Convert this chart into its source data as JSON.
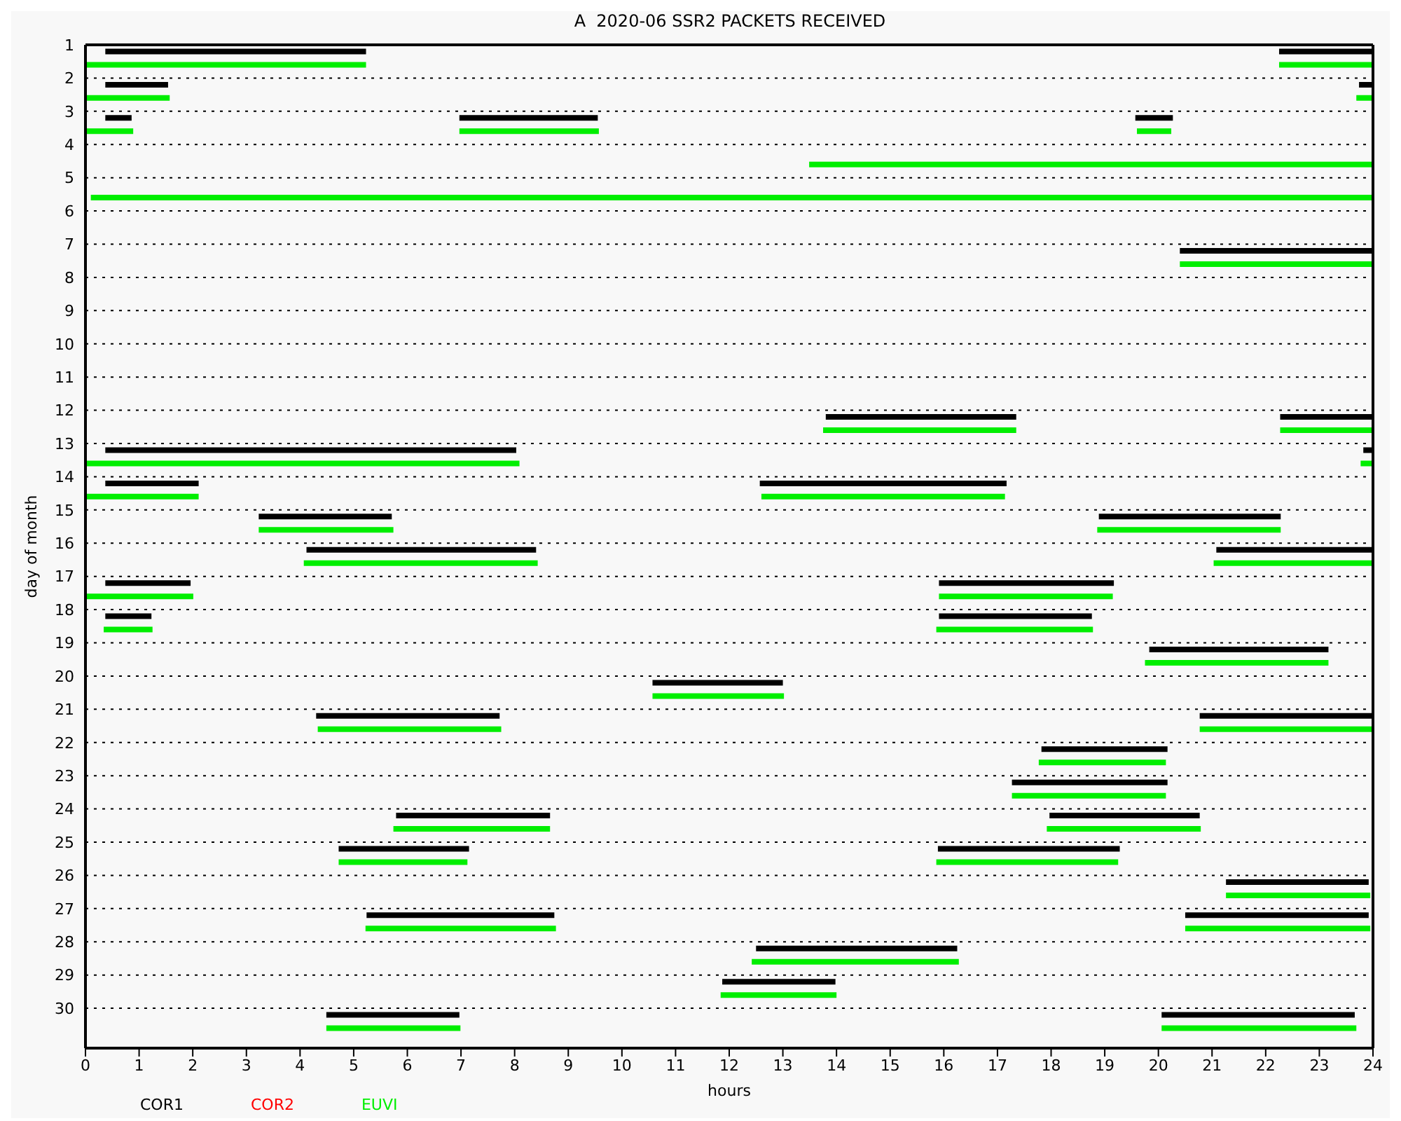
{
  "chart_data": {
    "type": "line",
    "title": "A  2020-06 SSR2 PACKETS RECEIVED",
    "xlabel": "hours",
    "ylabel": "day of month",
    "xlim": [
      0,
      24
    ],
    "xticks": [
      0,
      1,
      2,
      3,
      4,
      5,
      6,
      7,
      8,
      9,
      10,
      11,
      12,
      13,
      14,
      15,
      16,
      17,
      18,
      19,
      20,
      21,
      22,
      23,
      24
    ],
    "ylim": [
      31.2,
      1
    ],
    "yticks": [
      1,
      2,
      3,
      4,
      5,
      6,
      7,
      8,
      9,
      10,
      11,
      12,
      13,
      14,
      15,
      16,
      17,
      18,
      19,
      20,
      21,
      22,
      23,
      24,
      25,
      26,
      27,
      28,
      29,
      30
    ],
    "grid": "y",
    "legend": "bottom",
    "series": [
      {
        "name": "COR1",
        "color": "#000000",
        "x": [
          0.37,
          5.23,
          null,
          22.25,
          24,
          null,
          0.37,
          1.54,
          null,
          23.74,
          24,
          null,
          0.37,
          0.86,
          null,
          6.97,
          9.55,
          null,
          19.57,
          20.27,
          null,
          20.4,
          24,
          null,
          13.8,
          17.35,
          null,
          22.27,
          24,
          null,
          0.37,
          8.03,
          null,
          23.82,
          24,
          null,
          0.37,
          2.11,
          null,
          12.57,
          17.17,
          null,
          3.23,
          5.71,
          null,
          18.89,
          22.28,
          null,
          4.12,
          8.4,
          null,
          21.08,
          24,
          null,
          0.37,
          1.96,
          null,
          15.91,
          19.17,
          null,
          0.37,
          1.23,
          null,
          15.91,
          18.76,
          null,
          19.83,
          23.17,
          null,
          10.57,
          13.0,
          null,
          4.3,
          7.72,
          null,
          20.77,
          24,
          null,
          17.82,
          20.17,
          null,
          17.27,
          20.17,
          null,
          5.79,
          8.66,
          null,
          17.97,
          20.77,
          null,
          4.72,
          7.15,
          null,
          15.89,
          19.28,
          null,
          21.26,
          23.92,
          null,
          5.24,
          8.74,
          null,
          20.5,
          23.92,
          null,
          12.5,
          16.25,
          null,
          11.87,
          13.98,
          null,
          4.49,
          6.97,
          null,
          20.06,
          23.66,
          null
        ],
        "values": [
          1.2,
          1.2,
          null,
          1.2,
          1.2,
          null,
          2.2,
          2.2,
          null,
          2.2,
          2.2,
          null,
          3.2,
          3.2,
          null,
          3.2,
          3.2,
          null,
          3.2,
          3.2,
          null,
          7.2,
          7.2,
          null,
          12.2,
          12.2,
          null,
          12.2,
          12.2,
          null,
          13.2,
          13.2,
          null,
          13.2,
          13.2,
          null,
          14.2,
          14.2,
          null,
          14.2,
          14.2,
          null,
          15.2,
          15.2,
          null,
          15.2,
          15.2,
          null,
          16.2,
          16.2,
          null,
          16.2,
          16.2,
          null,
          17.2,
          17.2,
          null,
          17.2,
          17.2,
          null,
          18.2,
          18.2,
          null,
          18.2,
          18.2,
          null,
          19.2,
          19.2,
          null,
          20.2,
          20.2,
          null,
          21.2,
          21.2,
          null,
          21.2,
          21.2,
          null,
          22.2,
          22.2,
          null,
          23.2,
          23.2,
          null,
          24.2,
          24.2,
          null,
          24.2,
          24.2,
          null,
          25.2,
          25.2,
          null,
          25.2,
          25.2,
          null,
          26.2,
          26.2,
          null,
          27.2,
          27.2,
          null,
          27.2,
          27.2,
          null,
          28.2,
          28.2,
          null,
          29.2,
          29.2,
          null,
          30.2,
          30.2,
          null,
          30.2,
          30.2,
          null
        ]
      },
      {
        "name": "COR2",
        "color": "#ff0000"
      },
      {
        "name": "EUVI",
        "color": "#00ee00",
        "x": [
          0,
          5.23,
          null,
          22.25,
          24,
          null,
          0,
          1.57,
          null,
          23.69,
          24,
          null,
          0,
          0.89,
          null,
          6.97,
          9.57,
          null,
          19.6,
          20.24,
          null,
          13.49,
          24,
          null,
          0.1,
          24,
          null,
          20.4,
          24,
          null,
          13.75,
          17.35,
          null,
          22.27,
          24,
          null,
          0,
          8.09,
          null,
          23.77,
          24,
          null,
          0,
          2.11,
          null,
          12.6,
          17.14,
          null,
          3.23,
          5.74,
          null,
          18.86,
          22.28,
          null,
          4.07,
          8.43,
          null,
          21.03,
          24,
          null,
          0,
          2.01,
          null,
          15.91,
          19.15,
          null,
          0.34,
          1.25,
          null,
          15.86,
          18.78,
          null,
          19.75,
          23.17,
          null,
          10.57,
          13.02,
          null,
          4.33,
          7.75,
          null,
          20.77,
          24,
          null,
          17.77,
          20.14,
          null,
          17.27,
          20.14,
          null,
          5.74,
          8.66,
          null,
          17.92,
          20.79,
          null,
          4.72,
          7.12,
          null,
          15.86,
          19.25,
          null,
          21.26,
          23.95,
          null,
          5.22,
          8.77,
          null,
          20.5,
          23.95,
          null,
          12.42,
          16.28,
          null,
          11.84,
          14.0,
          null,
          4.49,
          6.99,
          null,
          20.06,
          23.69,
          null
        ],
        "values": [
          1.6,
          1.6,
          null,
          1.6,
          1.6,
          null,
          2.6,
          2.6,
          null,
          2.6,
          2.6,
          null,
          3.6,
          3.6,
          null,
          3.6,
          3.6,
          null,
          3.6,
          3.6,
          null,
          4.6,
          4.6,
          null,
          5.6,
          5.6,
          null,
          7.6,
          7.6,
          null,
          12.6,
          12.6,
          null,
          12.6,
          12.6,
          null,
          13.6,
          13.6,
          null,
          13.6,
          13.6,
          null,
          14.6,
          14.6,
          null,
          14.6,
          14.6,
          null,
          15.6,
          15.6,
          null,
          15.6,
          15.6,
          null,
          16.6,
          16.6,
          null,
          16.6,
          16.6,
          null,
          17.6,
          17.6,
          null,
          17.6,
          17.6,
          null,
          18.6,
          18.6,
          null,
          18.6,
          18.6,
          null,
          19.6,
          19.6,
          null,
          20.6,
          20.6,
          null,
          21.6,
          21.6,
          null,
          21.6,
          21.6,
          null,
          22.6,
          22.6,
          null,
          23.6,
          23.6,
          null,
          24.6,
          24.6,
          null,
          24.6,
          24.6,
          null,
          25.6,
          25.6,
          null,
          25.6,
          25.6,
          null,
          26.6,
          26.6,
          null,
          27.6,
          27.6,
          null,
          27.6,
          27.6,
          null,
          28.6,
          28.6,
          null,
          29.6,
          29.6,
          null,
          30.6,
          30.6,
          null,
          30.6,
          30.6,
          null
        ]
      }
    ]
  }
}
